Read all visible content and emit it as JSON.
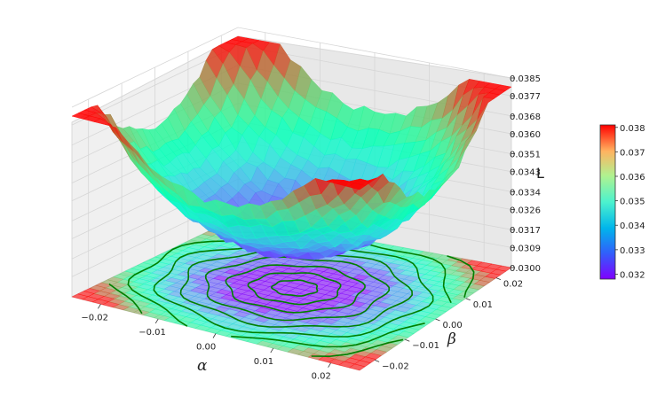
{
  "chart_data": {
    "type": "surface3d",
    "title": "",
    "xlabel": "α",
    "ylabel": "β",
    "zlabel": "L",
    "x_ticks": [
      "−0.02",
      "−0.01",
      "0.00",
      "0.01",
      "0.02"
    ],
    "x_tick_values": [
      -0.02,
      -0.01,
      0.0,
      0.01,
      0.02
    ],
    "y_ticks": [
      "−0.02",
      "−0.01",
      "0.00",
      "0.01",
      "0.02"
    ],
    "y_tick_values": [
      -0.02,
      -0.01,
      0.0,
      0.01,
      0.02
    ],
    "z_ticks": [
      "0.0300",
      "0.0309",
      "0.0317",
      "0.0326",
      "0.0334",
      "0.0343",
      "0.0351",
      "0.0360",
      "0.0368",
      "0.0377",
      "0.0385"
    ],
    "xlim": [
      -0.025,
      0.025
    ],
    "ylim": [
      -0.025,
      0.025
    ],
    "zlim": [
      0.03,
      0.0385
    ],
    "surface": {
      "min": 0.0318,
      "max": 0.0381,
      "center": [
        0.0,
        0.0
      ],
      "shape": "bowl",
      "noise": "moderate"
    },
    "contour": {
      "projected_on": "z=0.0300",
      "line_color": "#008000"
    },
    "colormap": "rainbow",
    "colorbar": {
      "ticks": [
        "0.032",
        "0.033",
        "0.034",
        "0.035",
        "0.036",
        "0.037",
        "0.038"
      ],
      "values": [
        0.032,
        0.033,
        0.034,
        0.035,
        0.036,
        0.037,
        0.038
      ],
      "range": [
        0.0318,
        0.0381
      ]
    },
    "grid": true
  }
}
